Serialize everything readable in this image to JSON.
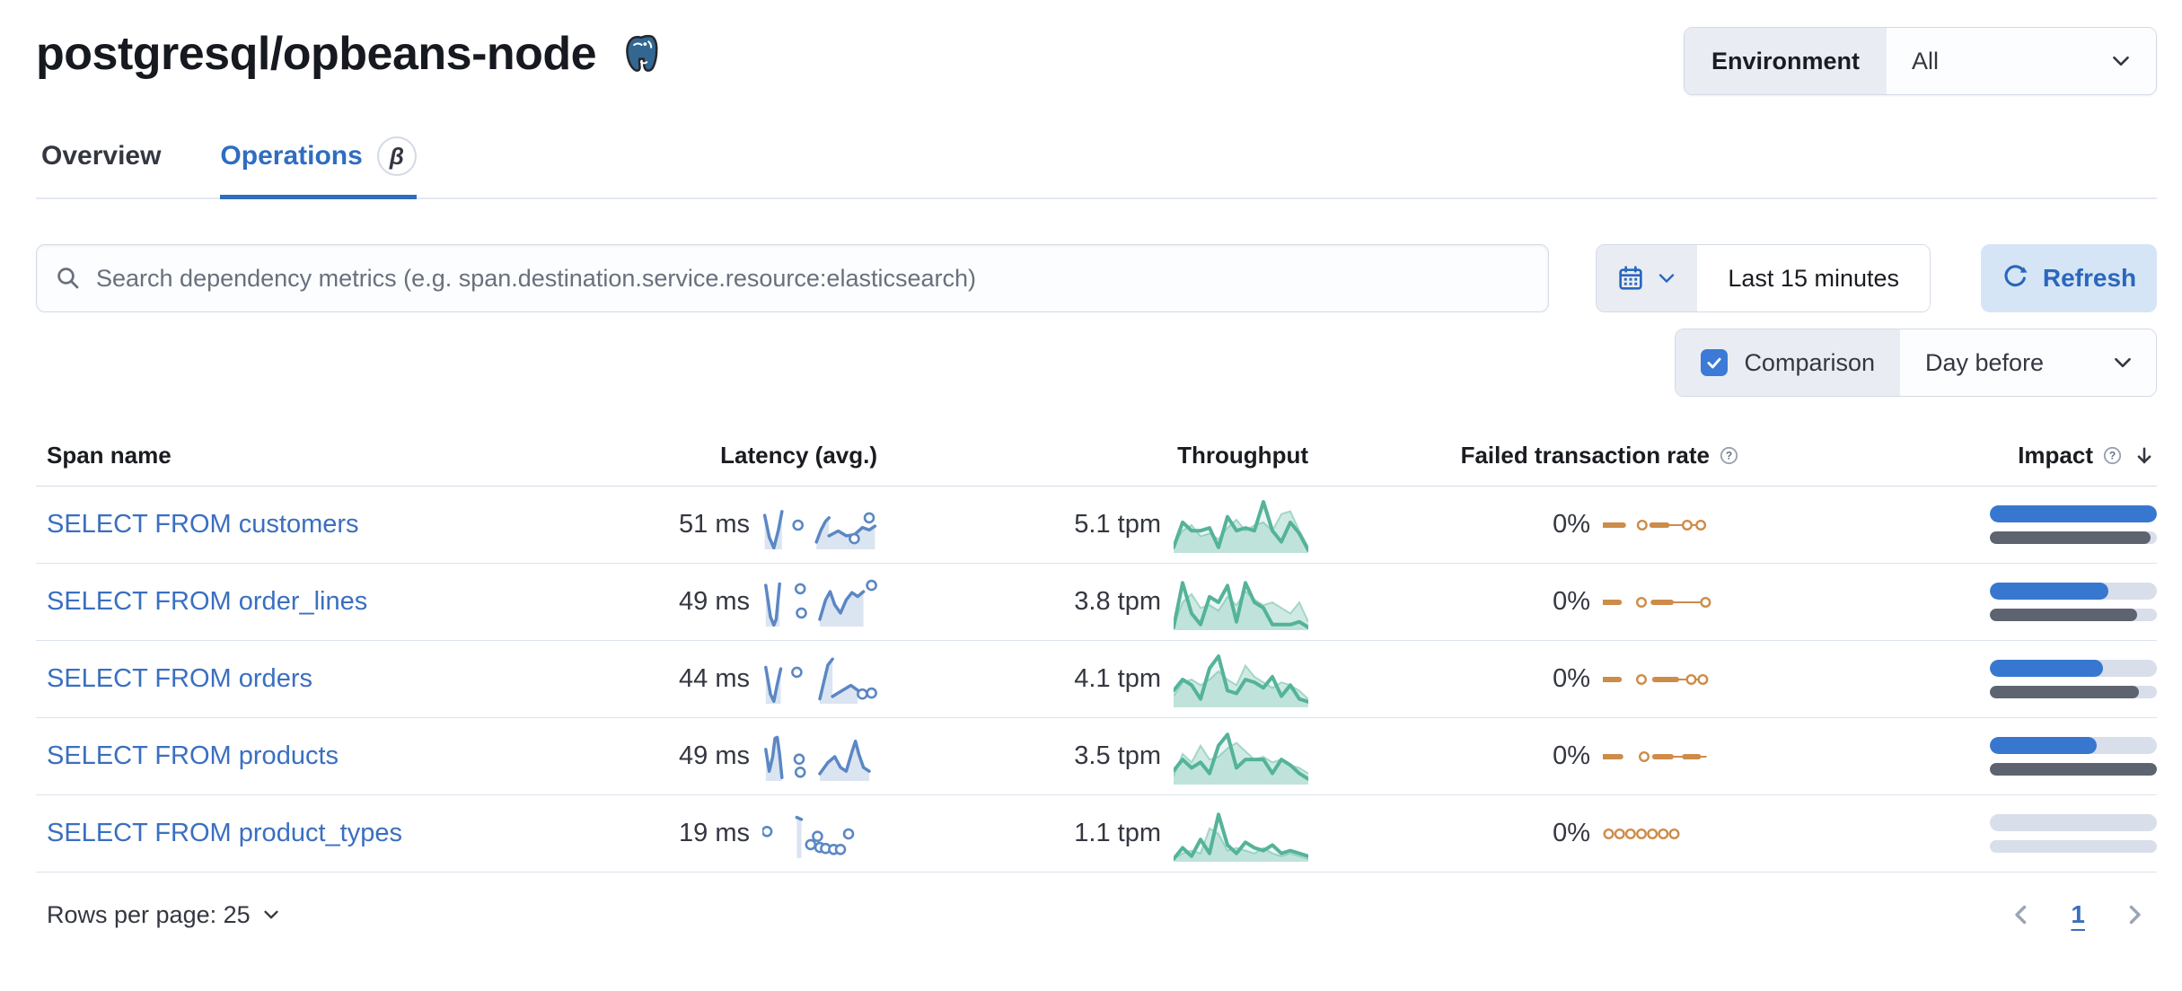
{
  "page": {
    "title": "postgresql/opbeans-node",
    "logo": "postgresql-elephant-icon"
  },
  "env": {
    "label": "Environment",
    "value": "All"
  },
  "tabs": [
    {
      "label": "Overview",
      "active": false
    },
    {
      "label": "Operations",
      "active": true,
      "beta": "β"
    }
  ],
  "search": {
    "placeholder": "Search dependency metrics (e.g. span.destination.service.resource:elasticsearch)"
  },
  "time_picker": {
    "value": "Last 15 minutes"
  },
  "refresh": {
    "label": "Refresh"
  },
  "comparison": {
    "label": "Comparison",
    "checked": true,
    "value": "Day before"
  },
  "table": {
    "headers": {
      "span_name": "Span name",
      "latency": "Latency (avg.)",
      "throughput": "Throughput",
      "failed_rate": "Failed transaction rate",
      "impact": "Impact"
    },
    "sort": {
      "column": "impact",
      "direction": "desc"
    },
    "rows": [
      {
        "name": "SELECT FROM customers",
        "latency": "51 ms",
        "throughput": "5.1 tpm",
        "failed_rate": "0%",
        "impact": {
          "current": 100,
          "previous": 96
        },
        "latency_spark": {
          "segments": [
            [
              [
                0.02,
                0.3
              ],
              [
                0.06,
                0.75
              ],
              [
                0.1,
                0.97
              ],
              [
                0.14,
                0.6
              ],
              [
                0.17,
                0.22
              ]
            ],
            [
              [
                0.47,
                0.85
              ],
              [
                0.51,
                0.6
              ],
              [
                0.55,
                0.42
              ],
              [
                0.58,
                0.35
              ]
            ],
            [
              [
                0.58,
                0.72
              ],
              [
                0.66,
                0.62
              ],
              [
                0.73,
                0.72
              ],
              [
                0.8,
                0.7
              ],
              [
                0.87,
                0.55
              ],
              [
                0.93,
                0.6
              ],
              [
                0.98,
                0.52
              ]
            ]
          ],
          "dots": [
            [
              0.31,
              0.5
            ],
            [
              0.8,
              0.78
            ],
            [
              0.93,
              0.35
            ]
          ]
        },
        "throughput_spark": {
          "current": [
            0.9,
            0.45,
            0.6,
            0.6,
            0.55,
            0.9,
            0.35,
            0.6,
            0.55,
            0.6,
            0.08,
            0.6,
            0.8,
            0.45,
            0.65,
            0.95
          ],
          "previous": [
            0.85,
            0.6,
            0.5,
            0.7,
            0.65,
            0.75,
            0.55,
            0.4,
            0.6,
            0.5,
            0.45,
            0.6,
            0.3,
            0.25,
            0.6,
            0.9
          ]
        },
        "failed_spark": {
          "dashes": [
            [
              0.0,
              0.15
            ],
            [
              0.36,
              0.47
            ]
          ],
          "lines": [
            [
              0.47,
              0.73
            ]
          ],
          "dots": [
            0.255,
            0.585,
            0.685
          ]
        }
      },
      {
        "name": "SELECT FROM order_lines",
        "latency": "49 ms",
        "throughput": "3.8 tpm",
        "failed_rate": "0%",
        "impact": {
          "current": 71,
          "previous": 88
        },
        "latency_spark": {
          "segments": [
            [
              [
                0.03,
                0.15
              ],
              [
                0.07,
                0.8
              ],
              [
                0.1,
                0.97
              ],
              [
                0.12,
                0.85
              ],
              [
                0.15,
                0.12
              ]
            ],
            [
              [
                0.5,
                0.85
              ],
              [
                0.55,
                0.45
              ],
              [
                0.59,
                0.28
              ],
              [
                0.63,
                0.55
              ],
              [
                0.68,
                0.72
              ],
              [
                0.73,
                0.45
              ],
              [
                0.78,
                0.3
              ],
              [
                0.83,
                0.38
              ],
              [
                0.88,
                0.28
              ]
            ]
          ],
          "dots": [
            [
              0.33,
              0.22
            ],
            [
              0.34,
              0.72
            ],
            [
              0.95,
              0.15
            ]
          ]
        },
        "throughput_spark": {
          "current": [
            0.95,
            0.15,
            0.7,
            0.9,
            0.4,
            0.5,
            0.2,
            0.85,
            0.15,
            0.5,
            0.6,
            0.9,
            0.9,
            0.9,
            0.85,
            0.95
          ],
          "previous": [
            0.9,
            0.5,
            0.35,
            0.6,
            0.55,
            0.65,
            0.4,
            0.55,
            0.3,
            0.45,
            0.55,
            0.5,
            0.6,
            0.7,
            0.5,
            0.85
          ]
        },
        "failed_spark": {
          "dashes": [
            [
              0.0,
              0.12
            ],
            [
              0.37,
              0.5
            ]
          ],
          "lines": [
            [
              0.5,
              0.72
            ]
          ],
          "dots": [
            0.25,
            0.72
          ]
        }
      },
      {
        "name": "SELECT FROM orders",
        "latency": "44 ms",
        "throughput": "4.1 tpm",
        "failed_rate": "0%",
        "impact": {
          "current": 68,
          "previous": 89
        },
        "latency_spark": {
          "segments": [
            [
              [
                0.03,
                0.25
              ],
              [
                0.07,
                0.8
              ],
              [
                0.1,
                0.95
              ],
              [
                0.13,
                0.6
              ],
              [
                0.16,
                0.28
              ]
            ],
            [
              [
                0.5,
                0.9
              ],
              [
                0.54,
                0.5
              ],
              [
                0.57,
                0.2
              ],
              [
                0.61,
                0.08
              ]
            ],
            [
              [
                0.61,
                0.85
              ],
              [
                0.7,
                0.72
              ],
              [
                0.77,
                0.62
              ],
              [
                0.83,
                0.72
              ]
            ]
          ],
          "dots": [
            [
              0.3,
              0.35
            ],
            [
              0.87,
              0.8
            ],
            [
              0.95,
              0.78
            ]
          ]
        },
        "throughput_spark": {
          "current": [
            0.7,
            0.5,
            0.6,
            0.85,
            0.3,
            0.08,
            0.7,
            0.75,
            0.5,
            0.55,
            0.65,
            0.45,
            0.8,
            0.6,
            0.85,
            0.9
          ],
          "previous": [
            0.8,
            0.55,
            0.5,
            0.6,
            0.5,
            0.35,
            0.5,
            0.6,
            0.25,
            0.45,
            0.55,
            0.65,
            0.55,
            0.6,
            0.7,
            0.85
          ]
        },
        "failed_spark": {
          "dashes": [
            [
              0.0,
              0.12
            ],
            [
              0.38,
              0.54
            ]
          ],
          "lines": [
            [
              0.54,
              0.7
            ]
          ],
          "dots": [
            0.25,
            0.615,
            0.7
          ]
        }
      },
      {
        "name": "SELECT FROM products",
        "latency": "49 ms",
        "throughput": "3.5 tpm",
        "failed_rate": "0%",
        "impact": {
          "current": 64,
          "previous": 100
        },
        "latency_spark": {
          "segments": [
            [
              [
                0.03,
                0.35
              ],
              [
                0.06,
                0.8
              ],
              [
                0.09,
                0.5
              ],
              [
                0.11,
                0.12
              ],
              [
                0.13,
                0.1
              ],
              [
                0.15,
                0.45
              ],
              [
                0.17,
                0.93
              ]
            ],
            [
              [
                0.5,
                0.85
              ],
              [
                0.57,
                0.62
              ],
              [
                0.63,
                0.5
              ],
              [
                0.68,
                0.72
              ],
              [
                0.73,
                0.8
              ],
              [
                0.78,
                0.4
              ],
              [
                0.81,
                0.18
              ],
              [
                0.84,
                0.45
              ],
              [
                0.88,
                0.72
              ],
              [
                0.93,
                0.8
              ]
            ]
          ],
          "dots": [
            [
              0.32,
              0.55
            ],
            [
              0.33,
              0.82
            ]
          ]
        },
        "throughput_spark": {
          "current": [
            0.75,
            0.55,
            0.7,
            0.6,
            0.8,
            0.3,
            0.1,
            0.7,
            0.55,
            0.55,
            0.55,
            0.8,
            0.55,
            0.65,
            0.8,
            0.9
          ],
          "previous": [
            0.85,
            0.45,
            0.6,
            0.3,
            0.55,
            0.5,
            0.35,
            0.25,
            0.4,
            0.55,
            0.5,
            0.6,
            0.55,
            0.65,
            0.7,
            0.8
          ]
        },
        "failed_spark": {
          "dashes": [
            [
              0.0,
              0.13
            ],
            [
              0.38,
              0.5
            ],
            [
              0.6,
              0.7
            ]
          ],
          "lines": [
            [
              0.5,
              0.6
            ],
            [
              0.7,
              0.76
            ]
          ],
          "dots": [
            0.27
          ]
        }
      },
      {
        "name": "SELECT FROM product_types",
        "latency": "19 ms",
        "throughput": "1.1 tpm",
        "failed_rate": "0%",
        "impact": {
          "current": 0,
          "previous": 0
        },
        "latency_spark": {
          "segments": [
            [
              [
                0.3,
                0.16
              ],
              [
                0.34,
                0.2
              ]
            ]
          ],
          "dots": [
            [
              0.04,
              0.45
            ],
            [
              0.42,
              0.72
            ],
            [
              0.48,
              0.55
            ],
            [
              0.5,
              0.78
            ],
            [
              0.55,
              0.8
            ],
            [
              0.62,
              0.82
            ],
            [
              0.68,
              0.82
            ],
            [
              0.75,
              0.5
            ]
          ]
        },
        "throughput_spark": {
          "current": [
            0.95,
            0.75,
            0.9,
            0.6,
            0.85,
            0.15,
            0.7,
            0.85,
            0.65,
            0.75,
            0.8,
            0.7,
            0.85,
            0.8,
            0.85,
            0.9
          ],
          "previous": [
            0.95,
            0.85,
            0.8,
            0.85,
            0.4,
            0.5,
            0.8,
            0.75,
            0.8,
            0.85,
            0.75,
            0.85,
            0.9,
            0.85,
            0.9,
            0.95
          ]
        },
        "failed_spark": {
          "dashes": [],
          "lines": [],
          "dots": [
            0.01,
            0.09,
            0.17,
            0.25,
            0.33,
            0.41,
            0.49
          ]
        }
      }
    ]
  },
  "pagination": {
    "rows_per_page_label": "Rows per page: 25",
    "page": "1"
  },
  "colors": {
    "link_blue": "#3a6fc0",
    "tab_active_blue": "#2f6dc0",
    "refresh_bg": "#d6e5f6",
    "refresh_text": "#2a67bd",
    "checkbox_blue": "#3b7ad6",
    "latency_spark_blue": "#5b87c4",
    "latency_area_blue": "#dbe5f1",
    "throughput_green": "#54b399",
    "failed_orange": "#cd8c4a",
    "impact_blue": "#3877cf",
    "impact_gray": "#5d6470",
    "impact_track": "#d8deea",
    "border_gray": "#d3dae6"
  }
}
